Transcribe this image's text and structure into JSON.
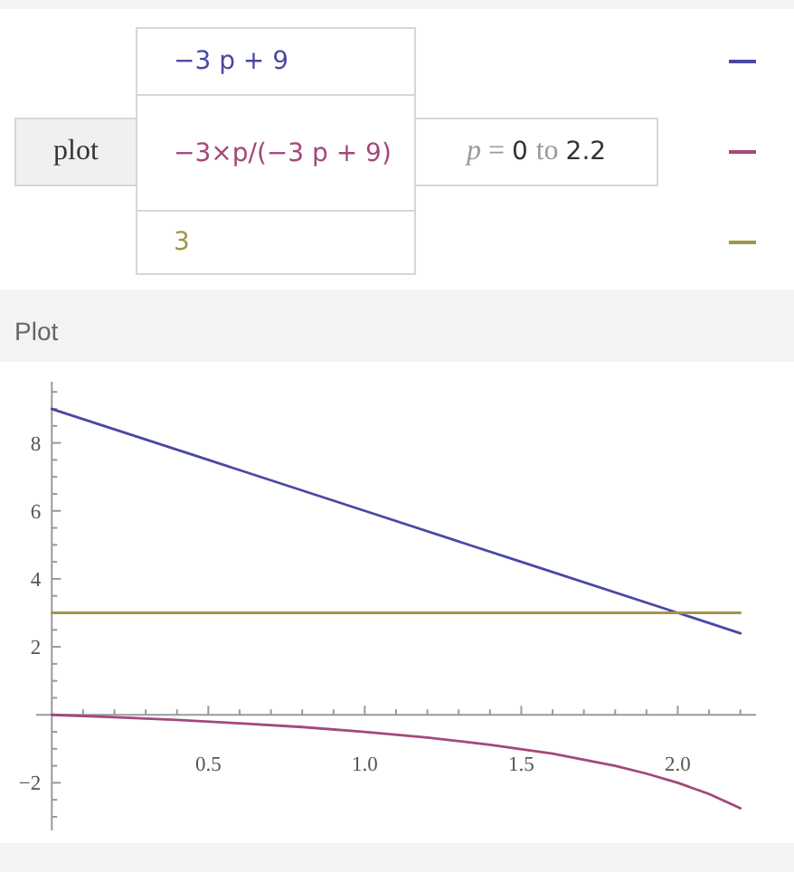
{
  "chart_data": {
    "type": "line",
    "title": "Plot",
    "annotations": [
      "plot",
      "p = 0 to 2.2"
    ],
    "series": [
      {
        "name": "−3 p + 9",
        "color": "#4a48a3",
        "x": [
          0,
          0.5,
          1,
          1.5,
          2,
          2.2
        ],
        "values": [
          9,
          7.5,
          6,
          4.5,
          3,
          2.4
        ]
      },
      {
        "name": "−3×p/(−3 p + 9)",
        "color": "#a3487b",
        "x": [
          0,
          0.2,
          0.4,
          0.6,
          0.8,
          1,
          1.2,
          1.4,
          1.6,
          1.8,
          1.9,
          2,
          2.1,
          2.2
        ],
        "values": [
          0,
          -0.07,
          -0.15,
          -0.25,
          -0.36,
          -0.5,
          -0.67,
          -0.88,
          -1.14,
          -1.5,
          -1.73,
          -2,
          -2.33,
          -2.75
        ]
      },
      {
        "name": "3",
        "color": "#a39548",
        "x": [
          0,
          2.2
        ],
        "values": [
          3,
          3
        ]
      }
    ],
    "xlim": [
      -0.05,
      2.25
    ],
    "xticks": [
      {
        "value": 0.1,
        "label": null
      },
      {
        "value": 0.2,
        "label": null
      },
      {
        "value": 0.3,
        "label": null
      },
      {
        "value": 0.4,
        "label": null
      },
      {
        "value": 0.5,
        "label": "0.5"
      },
      {
        "value": 0.6,
        "label": null
      },
      {
        "value": 0.7,
        "label": null
      },
      {
        "value": 0.8,
        "label": null
      },
      {
        "value": 0.9,
        "label": null
      },
      {
        "value": 1,
        "label": "1.0"
      },
      {
        "value": 1.1,
        "label": null
      },
      {
        "value": 1.2,
        "label": null
      },
      {
        "value": 1.3,
        "label": null
      },
      {
        "value": 1.4,
        "label": null
      },
      {
        "value": 1.5,
        "label": "1.5"
      },
      {
        "value": 1.6,
        "label": null
      },
      {
        "value": 1.7,
        "label": null
      },
      {
        "value": 1.8,
        "label": null
      },
      {
        "value": 1.9,
        "label": null
      },
      {
        "value": 2,
        "label": "2.0"
      },
      {
        "value": 2.1,
        "label": null
      },
      {
        "value": 2.2,
        "label": null
      }
    ],
    "ylim": [
      -3.4,
      9.8
    ],
    "yticks": [
      {
        "value": -3,
        "label": null
      },
      {
        "value": -2.5,
        "label": null
      },
      {
        "value": -2,
        "label": "−2"
      },
      {
        "value": -1.5,
        "label": null
      },
      {
        "value": -1,
        "label": null
      },
      {
        "value": -0.5,
        "label": null
      },
      {
        "value": 0.5,
        "label": null
      },
      {
        "value": 1,
        "label": null
      },
      {
        "value": 1.5,
        "label": null
      },
      2,
      {
        "value": 2.5,
        "label": null
      },
      {
        "value": 3,
        "label": null
      },
      {
        "value": 3.5,
        "label": null
      },
      4,
      {
        "value": 4.5,
        "label": null
      },
      {
        "value": 5,
        "label": null
      },
      {
        "value": 5.5,
        "label": null
      },
      6,
      {
        "value": 6.5,
        "label": null
      },
      {
        "value": 7,
        "label": null
      },
      {
        "value": 7.5,
        "label": null
      },
      8,
      {
        "value": 8.5,
        "label": null
      },
      {
        "value": 9,
        "label": null
      },
      {
        "value": 9.5,
        "label": null
      }
    ],
    "legend": "top"
  }
}
